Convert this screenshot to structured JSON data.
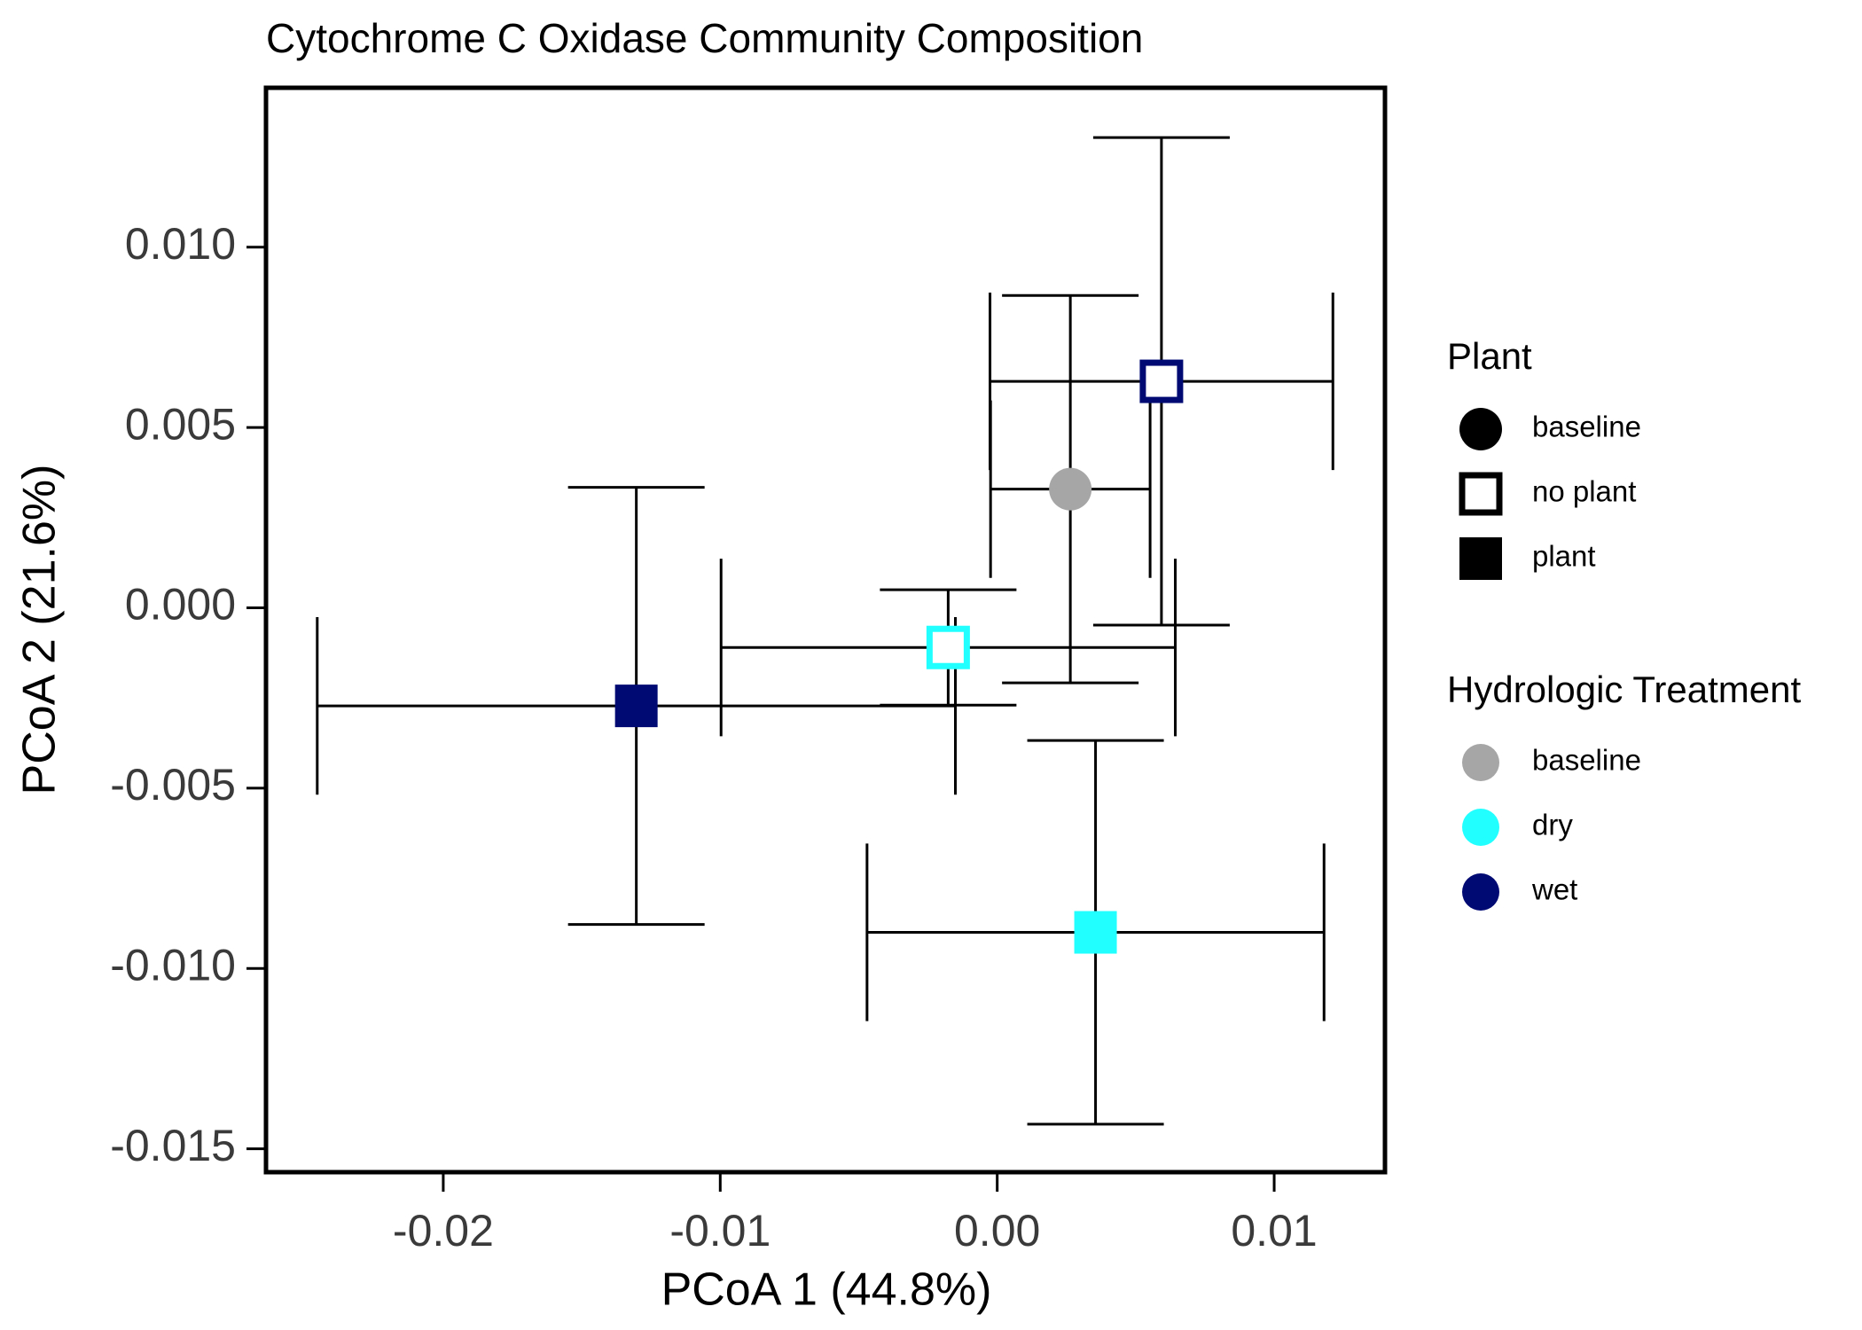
{
  "chart_data": {
    "type": "scatter",
    "title": "Cytochrome C Oxidase Community Composition",
    "x_label": "PCoA 1 (44.8%)",
    "y_label": "PCoA 2 (21.6%)",
    "xlim": [
      -0.0264,
      0.014
    ],
    "ylim": [
      -0.01565,
      0.01442
    ],
    "xticks": [
      {
        "value": -0.02,
        "label": "-0.02"
      },
      {
        "value": -0.01,
        "label": "-0.01"
      },
      {
        "value": 0,
        "label": "0.00"
      },
      {
        "value": 0.01,
        "label": "0.01"
      }
    ],
    "yticks": [
      {
        "value": -0.015,
        "label": "-0.015"
      },
      {
        "value": -0.01,
        "label": "-0.010"
      },
      {
        "value": -0.005,
        "label": "-0.005"
      },
      {
        "value": 0,
        "label": "0.000"
      },
      {
        "value": 0.005,
        "label": "0.005"
      },
      {
        "value": 0.01,
        "label": "0.010"
      }
    ],
    "legends": [
      {
        "title": "Plant",
        "entries": [
          {
            "label": "baseline",
            "shape": "circle"
          },
          {
            "label": "no plant",
            "shape": "open-square"
          },
          {
            "label": "plant",
            "shape": "square"
          }
        ]
      },
      {
        "title": "Hydrologic Treatment",
        "entries": [
          {
            "label": "baseline",
            "color": "#a6a6a6"
          },
          {
            "label": "dry",
            "color": "#22ffff"
          },
          {
            "label": "wet",
            "color": "#000a73"
          }
        ]
      }
    ],
    "points": [
      {
        "plant": "baseline",
        "treatment": "baseline",
        "x": 0.00264,
        "y": 0.00329,
        "xerr": 0.00288,
        "yerr": 0.00537
      },
      {
        "plant": "no plant",
        "treatment": "wet",
        "x": 0.00593,
        "y": 0.00628,
        "xerr": 0.00619,
        "yerr": 0.00676
      },
      {
        "plant": "no plant",
        "treatment": "dry",
        "x": -0.00177,
        "y": -0.0011,
        "xerr": 0.0082,
        "yerr": 0.0016
      },
      {
        "plant": "plant",
        "treatment": "wet",
        "x": -0.01303,
        "y": -0.00272,
        "xerr": 0.01152,
        "yerr": 0.00606
      },
      {
        "plant": "plant",
        "treatment": "dry",
        "x": 0.00355,
        "y": -0.009,
        "xerr": 0.00825,
        "yerr": 0.00532
      }
    ]
  }
}
